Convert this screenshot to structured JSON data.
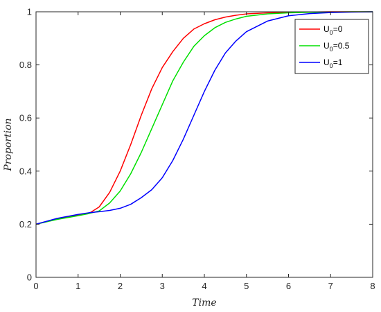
{
  "chart_data": {
    "type": "line",
    "title": "",
    "xlabel": "Time",
    "ylabel": "Proportion",
    "xlim": [
      0,
      8
    ],
    "ylim": [
      0,
      1
    ],
    "xticks": [
      0,
      1,
      2,
      3,
      4,
      5,
      6,
      7,
      8
    ],
    "yticks": [
      0,
      0.2,
      0.4,
      0.6,
      0.8,
      1
    ],
    "ytick_labels": [
      "0",
      "0.2",
      "0.4",
      "0.6",
      "0.8",
      "1"
    ],
    "grid": false,
    "legend_position": "top-right",
    "x": [
      0,
      0.5,
      1,
      1.25,
      1.5,
      1.75,
      2,
      2.25,
      2.5,
      2.75,
      3,
      3.25,
      3.5,
      3.75,
      4,
      4.25,
      4.5,
      4.75,
      5,
      5.5,
      6,
      6.5,
      7,
      7.5,
      8
    ],
    "series": [
      {
        "name_main": "U",
        "name_sub": "0",
        "name_suffix": "=0",
        "color": "#ff0000",
        "values": [
          0.2,
          0.22,
          0.235,
          0.24,
          0.265,
          0.32,
          0.4,
          0.5,
          0.61,
          0.71,
          0.79,
          0.85,
          0.9,
          0.935,
          0.955,
          0.97,
          0.98,
          0.987,
          0.992,
          0.996,
          0.998,
          0.999,
          1.0,
          1.0,
          1.0
        ]
      },
      {
        "name_main": "U",
        "name_sub": "0",
        "name_suffix": "=0.5",
        "color": "#00e000",
        "values": [
          0.2,
          0.218,
          0.232,
          0.24,
          0.25,
          0.28,
          0.325,
          0.39,
          0.47,
          0.56,
          0.65,
          0.74,
          0.81,
          0.87,
          0.91,
          0.94,
          0.96,
          0.973,
          0.983,
          0.992,
          0.996,
          0.998,
          0.999,
          1.0,
          1.0
        ]
      },
      {
        "name_main": "U",
        "name_sub": "0",
        "name_suffix": "=1",
        "color": "#0000ff",
        "values": [
          0.2,
          0.222,
          0.237,
          0.243,
          0.247,
          0.252,
          0.26,
          0.275,
          0.3,
          0.33,
          0.375,
          0.44,
          0.52,
          0.61,
          0.7,
          0.78,
          0.845,
          0.89,
          0.925,
          0.965,
          0.985,
          0.993,
          0.997,
          0.999,
          1.0
        ]
      }
    ]
  }
}
